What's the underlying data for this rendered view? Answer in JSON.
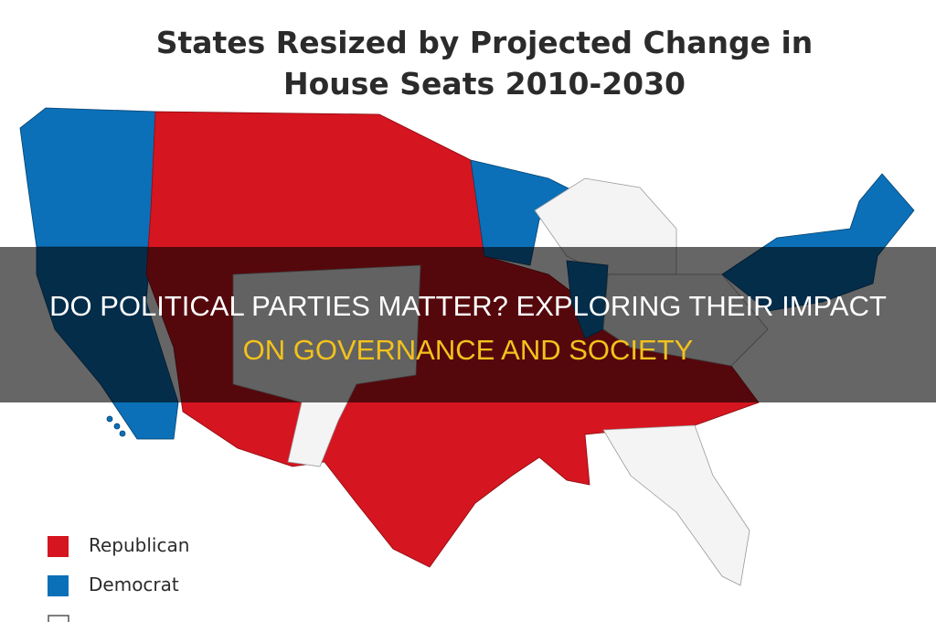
{
  "map_title": {
    "line1": "States Resized by Projected Change in",
    "line2": "House Seats 2010-2030"
  },
  "legend": {
    "items": [
      {
        "label": "Republican"
      },
      {
        "label": "Democrat"
      }
    ]
  },
  "headline": {
    "line1": "DO POLITICAL PARTIES MATTER? EXPLORING THEIR IMPACT",
    "line2": "ON GOVERNANCE AND SOCIETY"
  }
}
